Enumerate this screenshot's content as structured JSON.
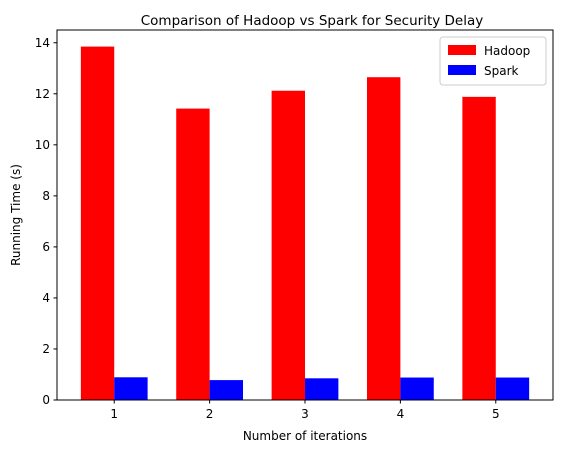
{
  "chart_data": {
    "type": "bar",
    "title": "Comparison of Hadoop vs Spark for Security Delay",
    "xlabel": "Number of iterations",
    "ylabel": "Running Time (s)",
    "categories": [
      "1",
      "2",
      "3",
      "4",
      "5"
    ],
    "series": [
      {
        "name": "Hadoop",
        "color": "#ff0000",
        "values": [
          13.85,
          11.42,
          12.12,
          12.65,
          11.88
        ]
      },
      {
        "name": "Spark",
        "color": "#0000ff",
        "values": [
          0.89,
          0.78,
          0.85,
          0.88,
          0.88
        ]
      }
    ],
    "ylim": [
      0,
      14.5
    ],
    "yticks": [
      0,
      2,
      4,
      6,
      8,
      10,
      12,
      14
    ],
    "grid": false,
    "legend_position": "top-right"
  }
}
